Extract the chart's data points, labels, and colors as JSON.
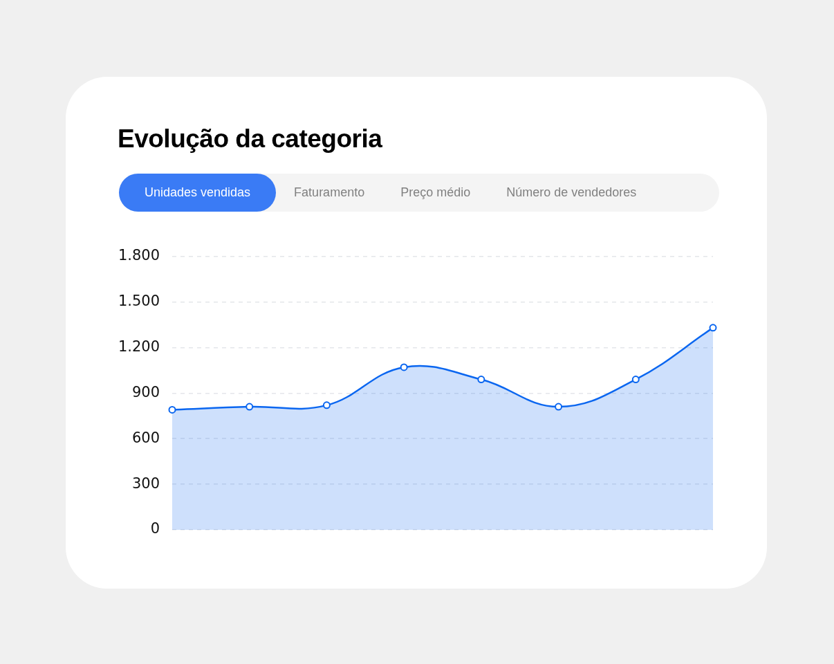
{
  "chart_data": {
    "type": "area",
    "title": "Evolução da categoria",
    "annotations": [
      "Unidades vendidas",
      "Faturamento",
      "Preço médio",
      "Número de vendedores"
    ],
    "categories": [
      null,
      null,
      null,
      null,
      null,
      null,
      null,
      null
    ],
    "series": [
      {
        "color": "#0a66f0",
        "values": [
          790,
          810,
          820,
          1070,
          990,
          810,
          990,
          1330
        ]
      }
    ],
    "ylim": [
      0,
      1800
    ],
    "yticks": [
      {
        "value": 0,
        "label": "0"
      },
      {
        "value": 300,
        "label": "300"
      },
      {
        "value": 600,
        "label": "600"
      },
      {
        "value": 900,
        "label": "900"
      },
      {
        "value": 1200,
        "label": "1.200"
      },
      {
        "value": 1500,
        "label": "1.500"
      },
      {
        "value": 1800,
        "label": "1.800"
      }
    ],
    "grid": "y",
    "legend": false,
    "marker": "circle",
    "line_style": "solid",
    "tick_labels": "y"
  }
}
